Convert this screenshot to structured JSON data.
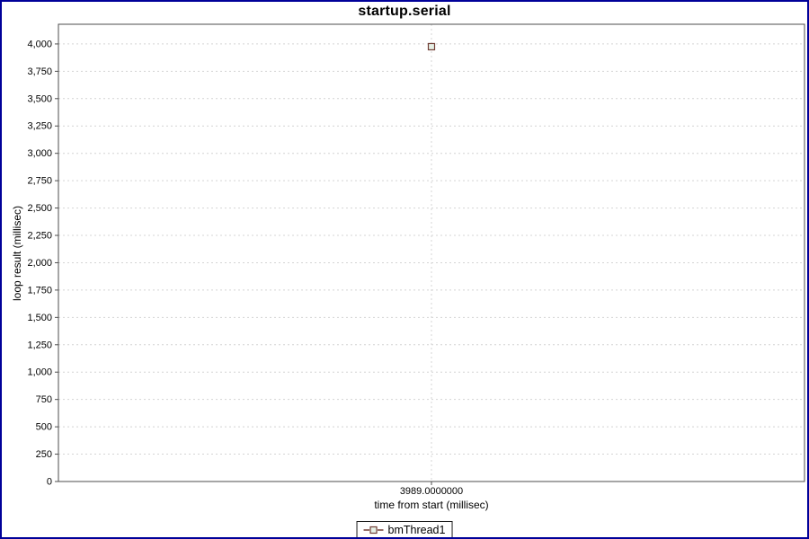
{
  "window": {
    "border_color": "#000099",
    "background_color": "#ffffff"
  },
  "chart_data": {
    "type": "scatter",
    "title": "startup.serial",
    "xlabel": "time from start (millisec)",
    "ylabel": "loop result (millisec)",
    "grid": true,
    "legend_position": "bottom",
    "axis_color": "#4d4d4d",
    "gridline_color": "#d4d4d4",
    "xlim": [
      3988.5,
      3989.5
    ],
    "ylim": [
      0,
      4180
    ],
    "series": [
      {
        "name": "bmThread1",
        "color": "#713e36",
        "marker": "square-outline",
        "marker_fill": "#e6f0e6",
        "points": [
          {
            "x": 3989.0,
            "y": 3975
          }
        ]
      }
    ],
    "x_ticks": [
      {
        "value": 3989.0,
        "label": "3989.0000000"
      }
    ],
    "y_ticks": [
      {
        "value": 0,
        "label": "0"
      },
      {
        "value": 250,
        "label": "250"
      },
      {
        "value": 500,
        "label": "500"
      },
      {
        "value": 750,
        "label": "750"
      },
      {
        "value": 1000,
        "label": "1,000"
      },
      {
        "value": 1250,
        "label": "1,250"
      },
      {
        "value": 1500,
        "label": "1,500"
      },
      {
        "value": 1750,
        "label": "1,750"
      },
      {
        "value": 2000,
        "label": "2,000"
      },
      {
        "value": 2250,
        "label": "2,250"
      },
      {
        "value": 2500,
        "label": "2,500"
      },
      {
        "value": 2750,
        "label": "2,750"
      },
      {
        "value": 3000,
        "label": "3,000"
      },
      {
        "value": 3250,
        "label": "3,250"
      },
      {
        "value": 3500,
        "label": "3,500"
      },
      {
        "value": 3750,
        "label": "3,750"
      },
      {
        "value": 4000,
        "label": "4,000"
      }
    ]
  }
}
